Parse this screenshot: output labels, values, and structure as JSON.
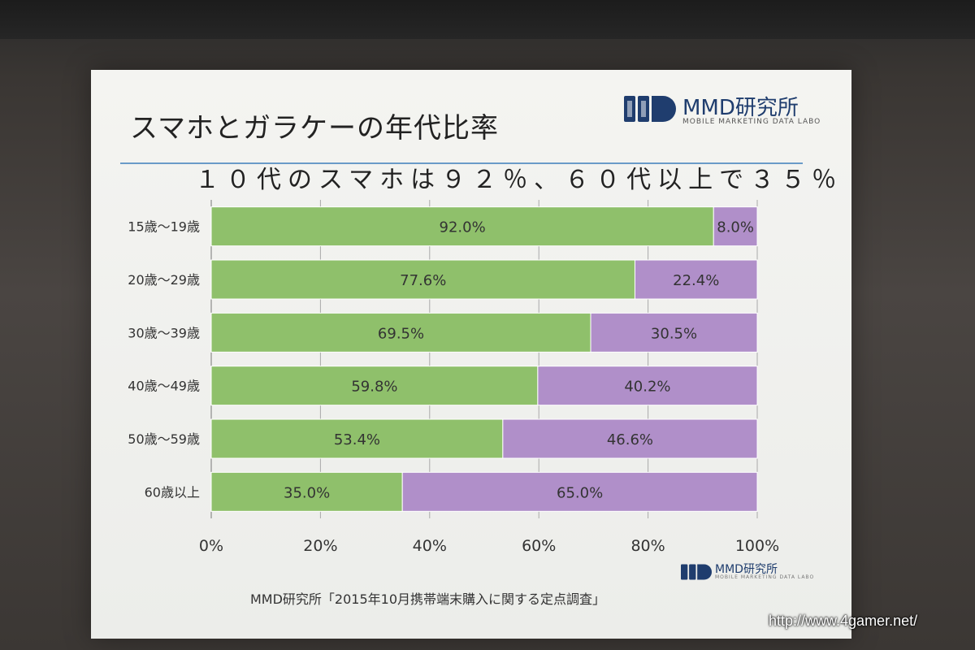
{
  "slide": {
    "title": "スマホとガラケーの年代比率",
    "headline": "１０代のスマホは９２％、６０代以上で３５％",
    "source": "MMD研究所「2015年10月携帯端末購入に関する定点調査」"
  },
  "brand": {
    "name": "MMD研究所",
    "sub": "MOBILE MARKETING DATA LABO",
    "small_name": "MMD研究所",
    "small_sub": "MOBILE MARKETING DATA LABO",
    "mark_color": "#1f3d6e"
  },
  "watermark": "http://www.4gamer.net/",
  "chart_data": {
    "type": "bar",
    "orientation": "horizontal",
    "stacked": true,
    "categories": [
      "15歳〜19歳",
      "20歳〜29歳",
      "30歳〜39歳",
      "40歳〜49歳",
      "50歳〜59歳",
      "60歳以上"
    ],
    "series": [
      {
        "values": [
          92.0,
          77.6,
          69.5,
          59.8,
          53.4,
          35.0
        ],
        "color": "#8fc06b"
      },
      {
        "values": [
          8.0,
          22.4,
          30.5,
          40.2,
          46.6,
          65.0
        ],
        "color": "#b08fc9"
      }
    ],
    "data_labels": [
      [
        "92.0%",
        "77.6%",
        "69.5%",
        "59.8%",
        "53.4%",
        "35.0%"
      ],
      [
        "8.0%",
        "22.4%",
        "30.5%",
        "40.2%",
        "46.6%",
        "65.0%"
      ]
    ],
    "xticks": [
      "0%",
      "20%",
      "40%",
      "60%",
      "80%",
      "100%"
    ],
    "xlim": [
      0,
      100
    ],
    "grid": true,
    "legend": "none"
  }
}
